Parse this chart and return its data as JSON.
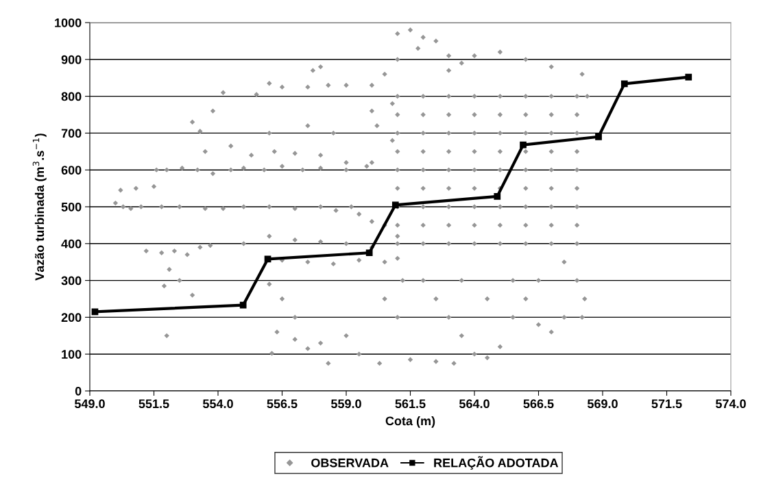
{
  "chart_data": {
    "type": "scatter",
    "xlabel": "Cota (m)",
    "ylabel": "Vazão turbinada (m$^{3}$.s$^{−1}$)",
    "xlim": [
      549,
      574
    ],
    "xticks": [
      {
        "value": 549,
        "label": "549.0"
      },
      {
        "value": 551.5,
        "label": "551.5"
      },
      {
        "value": 554,
        "label": "554.0"
      },
      {
        "value": 556.5,
        "label": "556.5"
      },
      {
        "value": 559,
        "label": "559.0"
      },
      {
        "value": 561.5,
        "label": "561.5"
      },
      {
        "value": 564,
        "label": "564.0"
      },
      {
        "value": 566.5,
        "label": "566.5"
      },
      {
        "value": 569,
        "label": "569.0"
      },
      {
        "value": 571.5,
        "label": "571.5"
      },
      {
        "value": 574,
        "label": "574.0"
      }
    ],
    "ylim": [
      0,
      1000
    ],
    "yticks": [
      0,
      100,
      200,
      300,
      400,
      500,
      600,
      700,
      800,
      900,
      1000
    ],
    "grid": "y",
    "legend": "bottom",
    "series": [
      {
        "name": "OBSERVADA",
        "color": "#969696",
        "marker": "diamond",
        "x": [
          550.0,
          550.3,
          550.6,
          551.0,
          550.2,
          550.8,
          551.5,
          551.6,
          552.0,
          552.6,
          553.2,
          553.8,
          554.5,
          555.0,
          555.8,
          556.5,
          557.3,
          558.0,
          559.0,
          559.8,
          551.2,
          551.8,
          552.3,
          552.8,
          553.3,
          553.7,
          552.5,
          552.1,
          553.0,
          552.0,
          551.9,
          554.2,
          555.0,
          556.0,
          557.0,
          558.0,
          558.6,
          559.2,
          552.5,
          553.5,
          551.8,
          553.3,
          553.0,
          553.8,
          554.2,
          555.5,
          556.0,
          556.5,
          557.5,
          558.3,
          559.0,
          560.0,
          557.7,
          558.0,
          553.5,
          554.5,
          555.3,
          556.2,
          557.0,
          558.0,
          559.0,
          560.0,
          556.0,
          557.5,
          558.5,
          555.0,
          556.0,
          557.0,
          558.0,
          559.0,
          560.0,
          556.5,
          557.5,
          558.5,
          559.5,
          560.5,
          561.0,
          556.0,
          556.5,
          557.0,
          556.3,
          557.0,
          558.0,
          559.0,
          559.5,
          560.3,
          558.3,
          557.5,
          556.1,
          561.0,
          561.5,
          562.0,
          561.8,
          561.0,
          560.5,
          562.5,
          563.0,
          563.5,
          561,
          561,
          561,
          561,
          561,
          561,
          561,
          561,
          561,
          562,
          562,
          562,
          562,
          562,
          562,
          562,
          562,
          562,
          563,
          563,
          563,
          563,
          563,
          563,
          563,
          563,
          563,
          564,
          564,
          564,
          564,
          564,
          564,
          564,
          564,
          564,
          565,
          565,
          565,
          565,
          565,
          565,
          565,
          565,
          565,
          566,
          566,
          566,
          566,
          566,
          566,
          566,
          566,
          566,
          567,
          567,
          567,
          567,
          567,
          567,
          567,
          567,
          567,
          568,
          568,
          568,
          568,
          568,
          568,
          568,
          568,
          568,
          564.0,
          565.0,
          566.0,
          567.0,
          568.2,
          563.0,
          568.4,
          562.0,
          562.5,
          563.0,
          563.5,
          564.0,
          564.5,
          565.0,
          565.5,
          566.0,
          566.5,
          567.0,
          567.5,
          568.2,
          568.3,
          568.0,
          567.5,
          566.5,
          565.5,
          564.5,
          563.5,
          562.5,
          563.2,
          561.5,
          561.0,
          560.5,
          561.2,
          560.5,
          561.0,
          560.0,
          559.5,
          560.8,
          560.2,
          560.8,
          560.0
        ],
        "values": [
          510,
          500,
          495,
          500,
          545,
          550,
          555,
          600,
          600,
          605,
          600,
          590,
          600,
          605,
          600,
          610,
          600,
          605,
          600,
          610,
          380,
          375,
          380,
          370,
          390,
          395,
          300,
          330,
          260,
          150,
          285,
          495,
          500,
          500,
          495,
          500,
          490,
          500,
          500,
          495,
          500,
          705,
          730,
          760,
          810,
          805,
          835,
          825,
          825,
          830,
          830,
          830,
          870,
          880,
          650,
          665,
          640,
          650,
          645,
          640,
          620,
          620,
          700,
          720,
          700,
          400,
          420,
          410,
          405,
          400,
          390,
          355,
          350,
          345,
          355,
          350,
          360,
          290,
          250,
          200,
          160,
          140,
          130,
          150,
          100,
          75,
          75,
          115,
          102,
          970,
          980,
          960,
          930,
          900,
          860,
          950,
          910,
          890,
          400,
          450,
          500,
          550,
          600,
          650,
          700,
          750,
          800,
          400,
          450,
          500,
          550,
          600,
          650,
          700,
          750,
          800,
          400,
          450,
          500,
          550,
          600,
          650,
          700,
          750,
          800,
          400,
          450,
          500,
          550,
          600,
          650,
          700,
          750,
          800,
          400,
          450,
          500,
          550,
          600,
          650,
          700,
          750,
          800,
          400,
          450,
          500,
          550,
          600,
          650,
          700,
          750,
          800,
          400,
          450,
          500,
          550,
          600,
          650,
          700,
          750,
          800,
          400,
          450,
          500,
          550,
          600,
          650,
          700,
          750,
          800,
          910,
          920,
          900,
          880,
          860,
          870,
          800,
          300,
          250,
          200,
          150,
          100,
          90,
          120,
          200,
          250,
          180,
          160,
          200,
          200,
          250,
          300,
          350,
          300,
          300,
          250,
          300,
          80,
          75,
          85,
          200,
          250,
          300,
          450,
          420,
          460,
          480,
          680,
          720,
          780,
          760
        ]
      },
      {
        "name": "RELAÇÃO ADOTADA",
        "type": "line",
        "color": "#000000",
        "marker": "square",
        "line_style": "solid",
        "x": [
          549.2,
          554.98,
          555.94,
          559.9,
          560.92,
          564.89,
          565.9,
          568.84,
          569.85,
          572.35
        ],
        "values": [
          215,
          233,
          358,
          375,
          505,
          528,
          668,
          690,
          834,
          852
        ]
      }
    ]
  }
}
